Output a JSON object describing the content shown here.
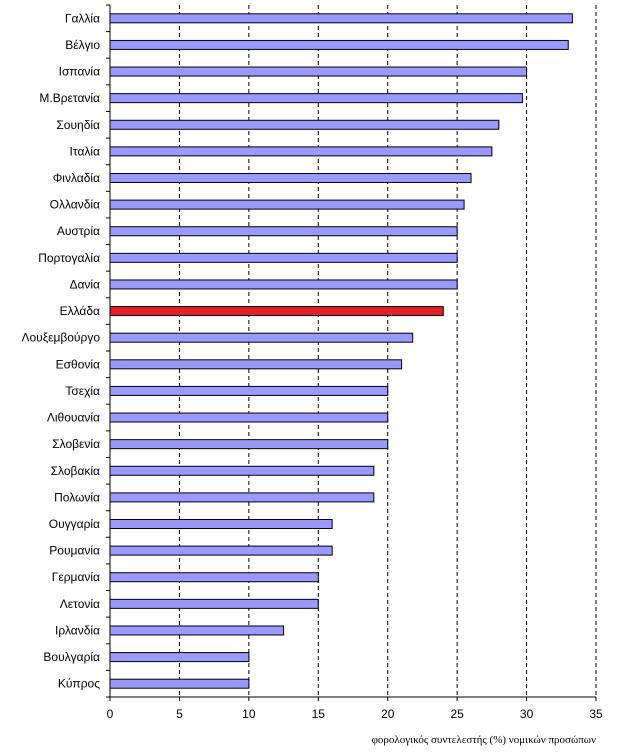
{
  "chart_data": {
    "type": "bar",
    "orientation": "horizontal",
    "categories": [
      "Γαλλία",
      "Βέλγιο",
      "Ισπανία",
      "Μ.Βρετανία",
      "Σουηδία",
      "Ιταλία",
      "Φινλαδία",
      "Ολλανδία",
      "Αυστρία",
      "Πορτογαλία",
      "Δανία",
      "Ελλάδα",
      "Λουξεμβούργο",
      "Εσθονία",
      "Τσεχία",
      "Λιθουανία",
      "Σλοβενία",
      "Σλοβακία",
      "Πολωνία",
      "Ουγγαρία",
      "Ρουμανία",
      "Γερμανία",
      "Λετονία",
      "Ιρλανδία",
      "Βουλγαρία",
      "Κύπρος"
    ],
    "values": [
      33.3,
      33.0,
      30.0,
      29.7,
      28.0,
      27.5,
      26.0,
      25.5,
      25.0,
      25.0,
      25.0,
      24.0,
      21.8,
      21.0,
      20.0,
      20.0,
      20.0,
      19.0,
      19.0,
      16.0,
      16.0,
      15.0,
      15.0,
      12.5,
      10.0,
      10.0
    ],
    "highlight_category": "Ελλάδα",
    "xlabel": "φορολογικός συντελεστής (%) νομικών προσώπων",
    "ylabel": "",
    "xlim": [
      0,
      35
    ],
    "xticks": [
      "0",
      "5",
      "10",
      "15",
      "20",
      "25",
      "30",
      "35"
    ],
    "grid": "vertical dashed",
    "legend": "none",
    "colors": {
      "bar": "#9999ff",
      "highlight": "#e31e24",
      "bar_edge": "#000000",
      "grid": "#000000"
    }
  }
}
